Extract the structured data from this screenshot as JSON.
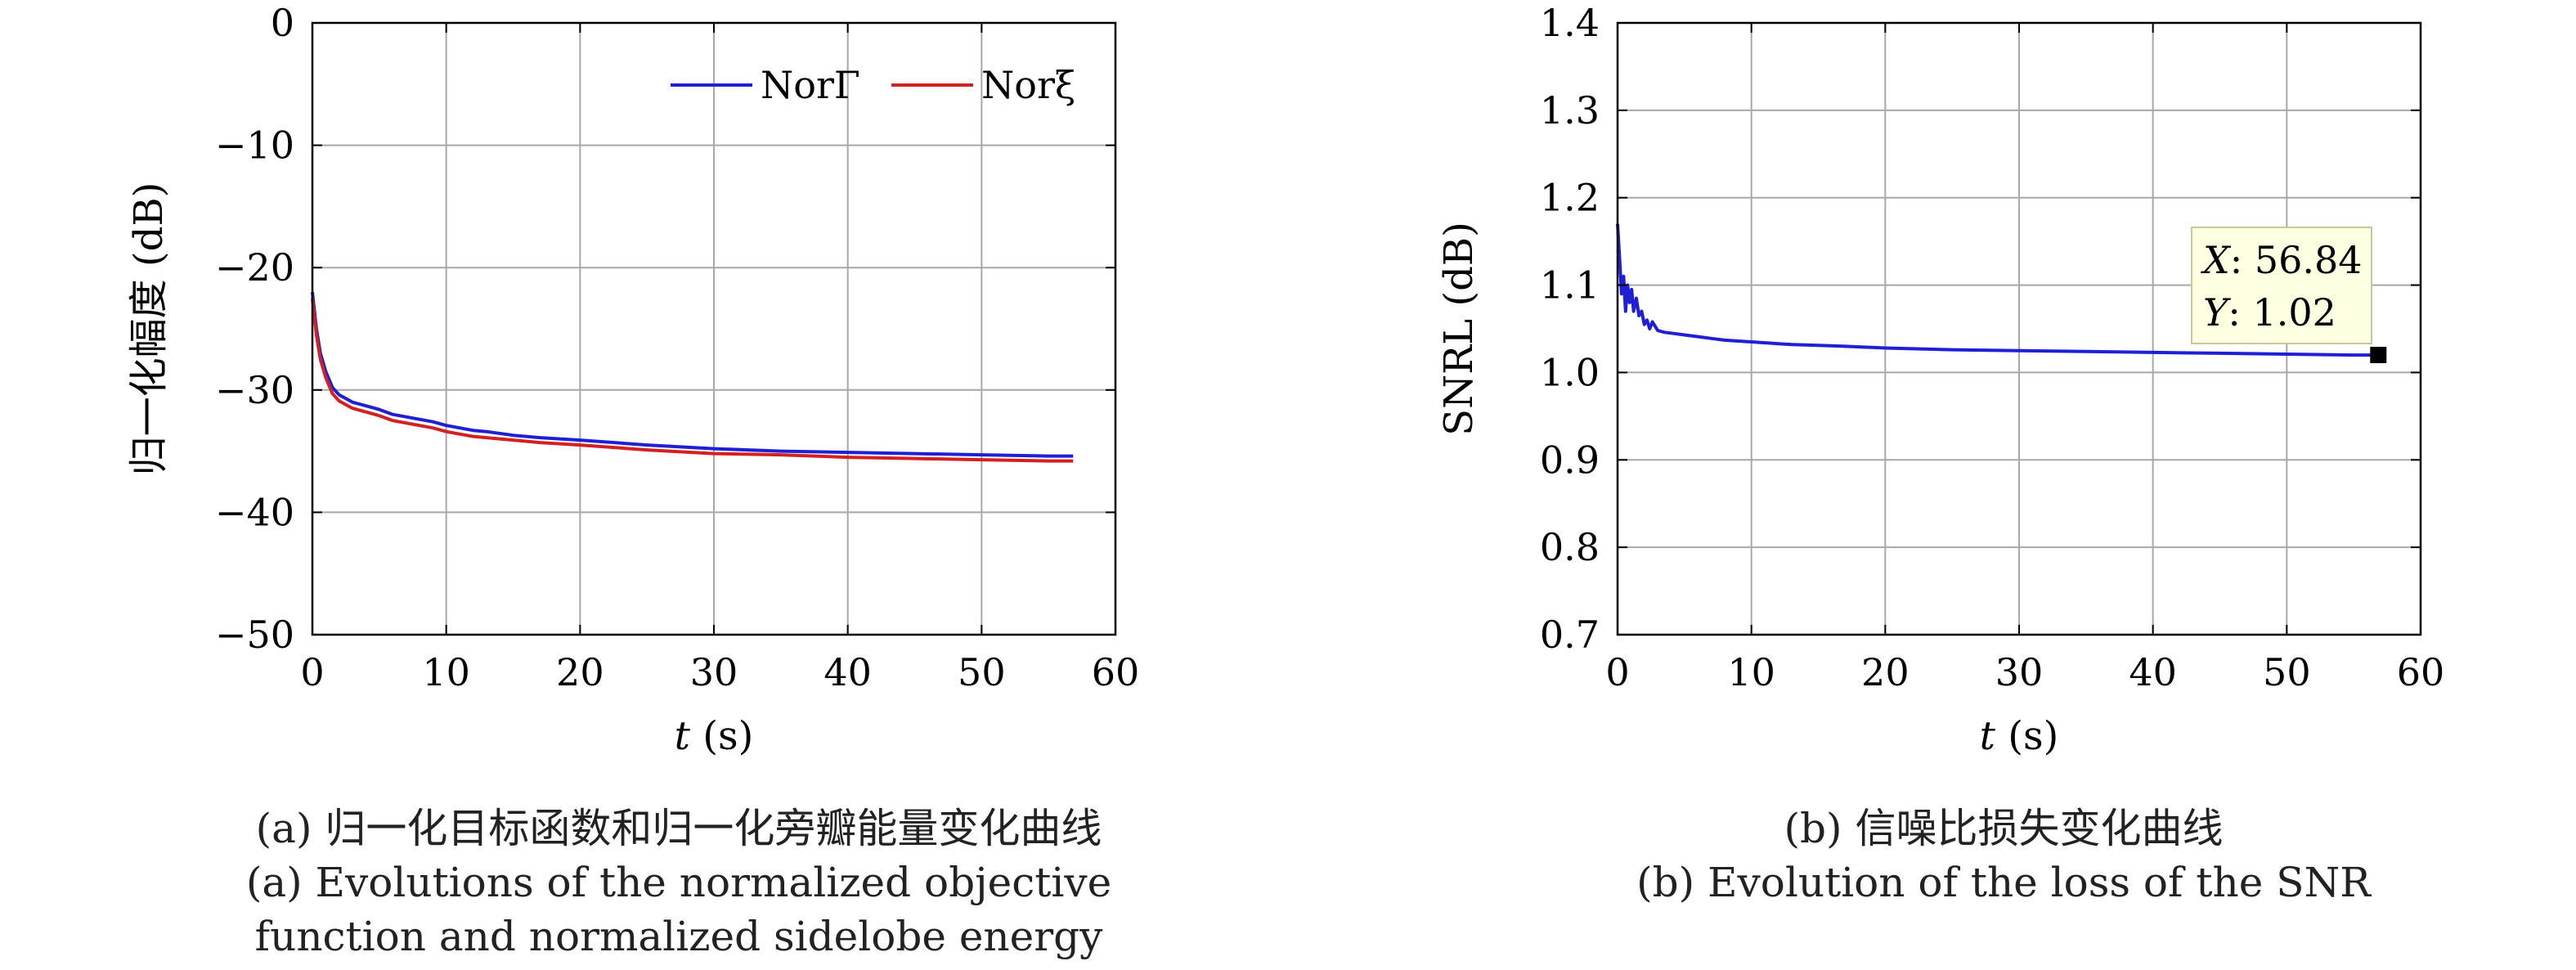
{
  "chart_data": [
    {
      "type": "line",
      "xlabel_var": "t",
      "xlabel_unit": " (s)",
      "ylabel": "归一化幅度 (dB)",
      "xlim": [
        0,
        60
      ],
      "ylim": [
        -50,
        0
      ],
      "xticks": [
        0,
        10,
        20,
        30,
        40,
        50,
        60
      ],
      "yticks": [
        0,
        -10,
        -20,
        -30,
        -40,
        -50
      ],
      "ytick_labels": [
        "0",
        "−10",
        "−20",
        "−30",
        "−40",
        "−50"
      ],
      "grid": true,
      "legend_position": "top-right",
      "series": [
        {
          "name": "NorΓ",
          "color": "#1f1fd6",
          "x": [
            0,
            0.3,
            0.6,
            1,
            1.5,
            2,
            2.5,
            3,
            4,
            5,
            6,
            7,
            8,
            9,
            10,
            11,
            12,
            13,
            15,
            17,
            20,
            25,
            30,
            35,
            40,
            45,
            50,
            55,
            56.84
          ],
          "values": [
            -22,
            -25,
            -27,
            -28.5,
            -29.8,
            -30.4,
            -30.7,
            -31,
            -31.3,
            -31.6,
            -32,
            -32.2,
            -32.4,
            -32.6,
            -32.9,
            -33.1,
            -33.3,
            -33.4,
            -33.7,
            -33.9,
            -34.1,
            -34.5,
            -34.8,
            -35,
            -35.1,
            -35.2,
            -35.3,
            -35.4,
            -35.4
          ]
        },
        {
          "name": "Norξ",
          "color": "#d42020",
          "x": [
            0,
            0.3,
            0.6,
            1,
            1.5,
            2,
            2.5,
            3,
            4,
            5,
            6,
            7,
            8,
            9,
            10,
            11,
            12,
            13,
            15,
            17,
            20,
            25,
            30,
            35,
            40,
            45,
            50,
            55,
            56.84
          ],
          "values": [
            -22.5,
            -25.5,
            -27.5,
            -29,
            -30.3,
            -30.9,
            -31.2,
            -31.5,
            -31.8,
            -32.1,
            -32.5,
            -32.7,
            -32.9,
            -33.1,
            -33.4,
            -33.6,
            -33.8,
            -33.9,
            -34.1,
            -34.3,
            -34.5,
            -34.9,
            -35.2,
            -35.3,
            -35.5,
            -35.6,
            -35.7,
            -35.8,
            -35.8
          ]
        }
      ]
    },
    {
      "type": "line",
      "xlabel_var": "t",
      "xlabel_unit": " (s)",
      "ylabel": "SNRL (dB)",
      "xlim": [
        0,
        60
      ],
      "ylim": [
        0.7,
        1.4
      ],
      "xticks": [
        0,
        10,
        20,
        30,
        40,
        50,
        60
      ],
      "yticks": [
        1.4,
        1.3,
        1.2,
        1.1,
        1.0,
        0.9,
        0.8,
        0.7
      ],
      "ytick_labels": [
        "1.4",
        "1.3",
        "1.2",
        "1.1",
        "1.0",
        "0.9",
        "0.8",
        "0.7"
      ],
      "grid": true,
      "series": [
        {
          "color": "#1f1fd6",
          "x": [
            0,
            0.15,
            0.3,
            0.45,
            0.6,
            0.75,
            0.9,
            1.05,
            1.2,
            1.4,
            1.6,
            1.8,
            2,
            2.2,
            2.4,
            2.6,
            3,
            3.5,
            4,
            5,
            6,
            7,
            8,
            9,
            10,
            11,
            12,
            13,
            15,
            17,
            20,
            25,
            30,
            35,
            40,
            45,
            50,
            55,
            56.84
          ],
          "values": [
            1.17,
            1.13,
            1.09,
            1.11,
            1.07,
            1.1,
            1.08,
            1.095,
            1.07,
            1.085,
            1.065,
            1.07,
            1.055,
            1.06,
            1.05,
            1.058,
            1.048,
            1.046,
            1.045,
            1.043,
            1.041,
            1.039,
            1.037,
            1.036,
            1.035,
            1.034,
            1.033,
            1.032,
            1.031,
            1.03,
            1.028,
            1.026,
            1.025,
            1.024,
            1.023,
            1.022,
            1.021,
            1.02,
            1.02
          ]
        }
      ],
      "annotation": {
        "x_label_var": "X",
        "x_value": "56.84",
        "y_label_var": "Y",
        "y_value": "1.02",
        "point": [
          56.84,
          1.02
        ]
      }
    }
  ],
  "captions": {
    "a_line1": "(a) 归一化目标函数和归一化旁瓣能量变化曲线",
    "a_line2": "(a) Evolutions of the normalized objective",
    "a_line3": "function and normalized sidelobe energy",
    "b_line1": "(b) 信噪比损失变化曲线",
    "b_line2": "(b) Evolution of the loss of the SNR"
  }
}
